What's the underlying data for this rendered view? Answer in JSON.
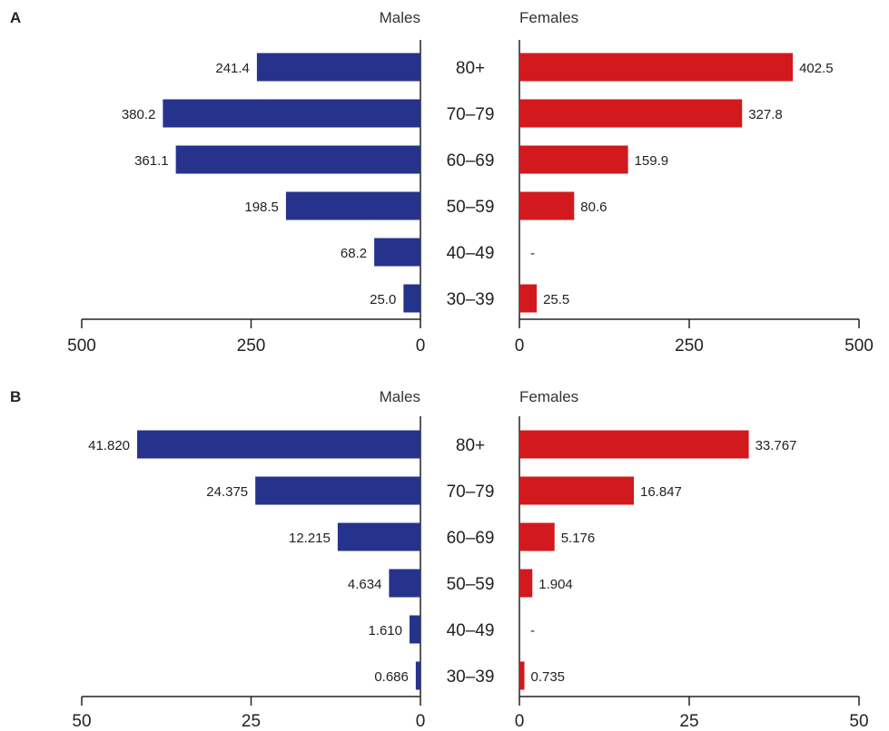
{
  "chart_data": [
    {
      "type": "bar",
      "panel": "A",
      "orientation": "horizontal-butterfly",
      "categories": [
        "80+",
        "70–79",
        "60–69",
        "50–59",
        "40–49",
        "30–39"
      ],
      "series": [
        {
          "name": "Males",
          "values": [
            241.4,
            380.2,
            361.1,
            198.5,
            68.2,
            25.0
          ],
          "labels": [
            "241.4",
            "380.2",
            "361.1",
            "198.5",
            "68.2",
            "25.0"
          ],
          "color": "#26338c"
        },
        {
          "name": "Females",
          "values": [
            402.5,
            327.8,
            159.9,
            80.6,
            null,
            25.5
          ],
          "labels": [
            "402.5",
            "327.8",
            "159.9",
            "80.6",
            "-",
            "25.5"
          ],
          "color": "#d2191e"
        }
      ],
      "xlim": [
        0,
        500
      ],
      "ticks": [
        "0",
        "250",
        "500"
      ],
      "grid": false
    },
    {
      "type": "bar",
      "panel": "B",
      "orientation": "horizontal-butterfly",
      "categories": [
        "80+",
        "70–79",
        "60–69",
        "50–59",
        "40–49",
        "30–39"
      ],
      "series": [
        {
          "name": "Males",
          "values": [
            41.82,
            24.375,
            12.215,
            4.634,
            1.61,
            0.686
          ],
          "labels": [
            "41.820",
            "24.375",
            "12.215",
            "4.634",
            "1.610",
            "0.686"
          ],
          "color": "#26338c"
        },
        {
          "name": "Females",
          "values": [
            33.767,
            16.847,
            5.176,
            1.904,
            null,
            0.735
          ],
          "labels": [
            "33.767",
            "16.847",
            "5.176",
            "1.904",
            "-",
            "0.735"
          ],
          "color": "#d2191e"
        }
      ],
      "xlim": [
        0,
        50
      ],
      "ticks": [
        "0",
        "25",
        "50"
      ],
      "grid": false
    }
  ]
}
